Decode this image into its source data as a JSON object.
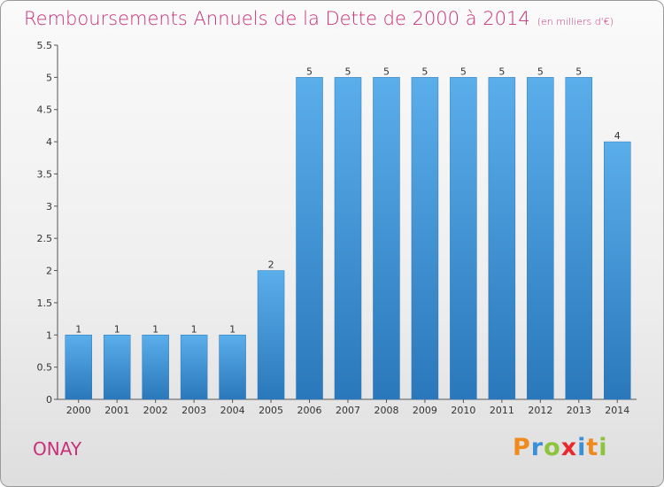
{
  "chart_data": {
    "type": "bar",
    "title": "Remboursements Annuels de la Dette de 2000 à 2014",
    "unit": "(en milliers d'€)",
    "categories": [
      "2000",
      "2001",
      "2002",
      "2003",
      "2004",
      "2005",
      "2006",
      "2007",
      "2008",
      "2009",
      "2010",
      "2011",
      "2012",
      "2013",
      "2014"
    ],
    "values": [
      1,
      1,
      1,
      1,
      1,
      2,
      5,
      5,
      5,
      5,
      5,
      5,
      5,
      5,
      4
    ],
    "data_labels": [
      "1",
      "1",
      "1",
      "1",
      "1",
      "2",
      "5",
      "5",
      "5",
      "5",
      "5",
      "5",
      "5",
      "5",
      "4"
    ],
    "yticks": [
      "0",
      "0.5",
      "1",
      "1.5",
      "2",
      "2.5",
      "3",
      "3.5",
      "4",
      "4.5",
      "5",
      "5.5"
    ],
    "ylim": [
      0,
      5.5
    ],
    "bar_color": "#3d95d8",
    "title_color": "#c8307a"
  },
  "commune": "ONAY",
  "logo": {
    "letters": [
      "P",
      "r",
      "o",
      "x",
      "i",
      "t",
      "i"
    ],
    "colors": [
      "#f08a1c",
      "#3a8fd9",
      "#8cc43c",
      "#e8282c",
      "#3a8fd9",
      "#f08a1c",
      "#8cc43c"
    ]
  }
}
